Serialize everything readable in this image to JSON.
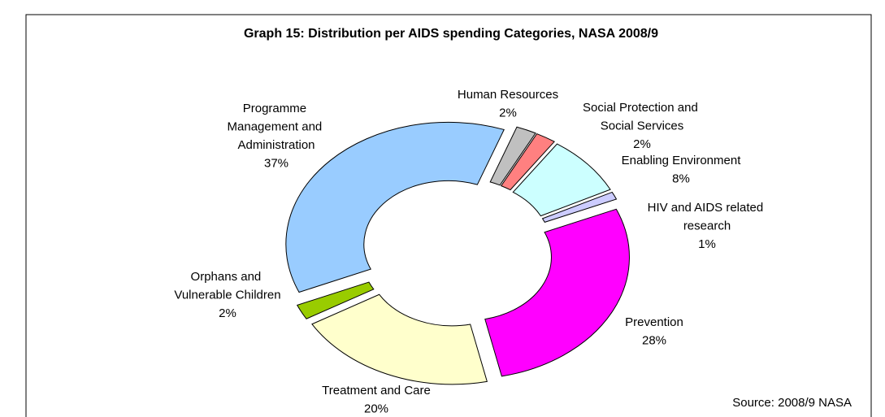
{
  "chart_data": {
    "type": "donut",
    "title": "Graph 15: Distribution per AIDS spending Categories, NASA 2008/9",
    "categories": [
      "Human Resources",
      "Social Protection and Social Services",
      "Enabling Environment",
      "HIV and AIDS related research",
      "Prevention",
      "Treatment and Care",
      "Orphans and Vulnerable Children",
      "Programme Management and Administration"
    ],
    "values": [
      2,
      2,
      8,
      1,
      28,
      20,
      2,
      37
    ],
    "value_labels": [
      "2%",
      "2%",
      "8%",
      "1%",
      "28%",
      "20%",
      "2%",
      "37%"
    ],
    "colors": [
      "#c0c0c0",
      "#ff8080",
      "#ccffff",
      "#ccccff",
      "#ff00ff",
      "#ffffcc",
      "#99cc00",
      "#99ccff"
    ],
    "source": "Source: 2008/9 NASA"
  }
}
